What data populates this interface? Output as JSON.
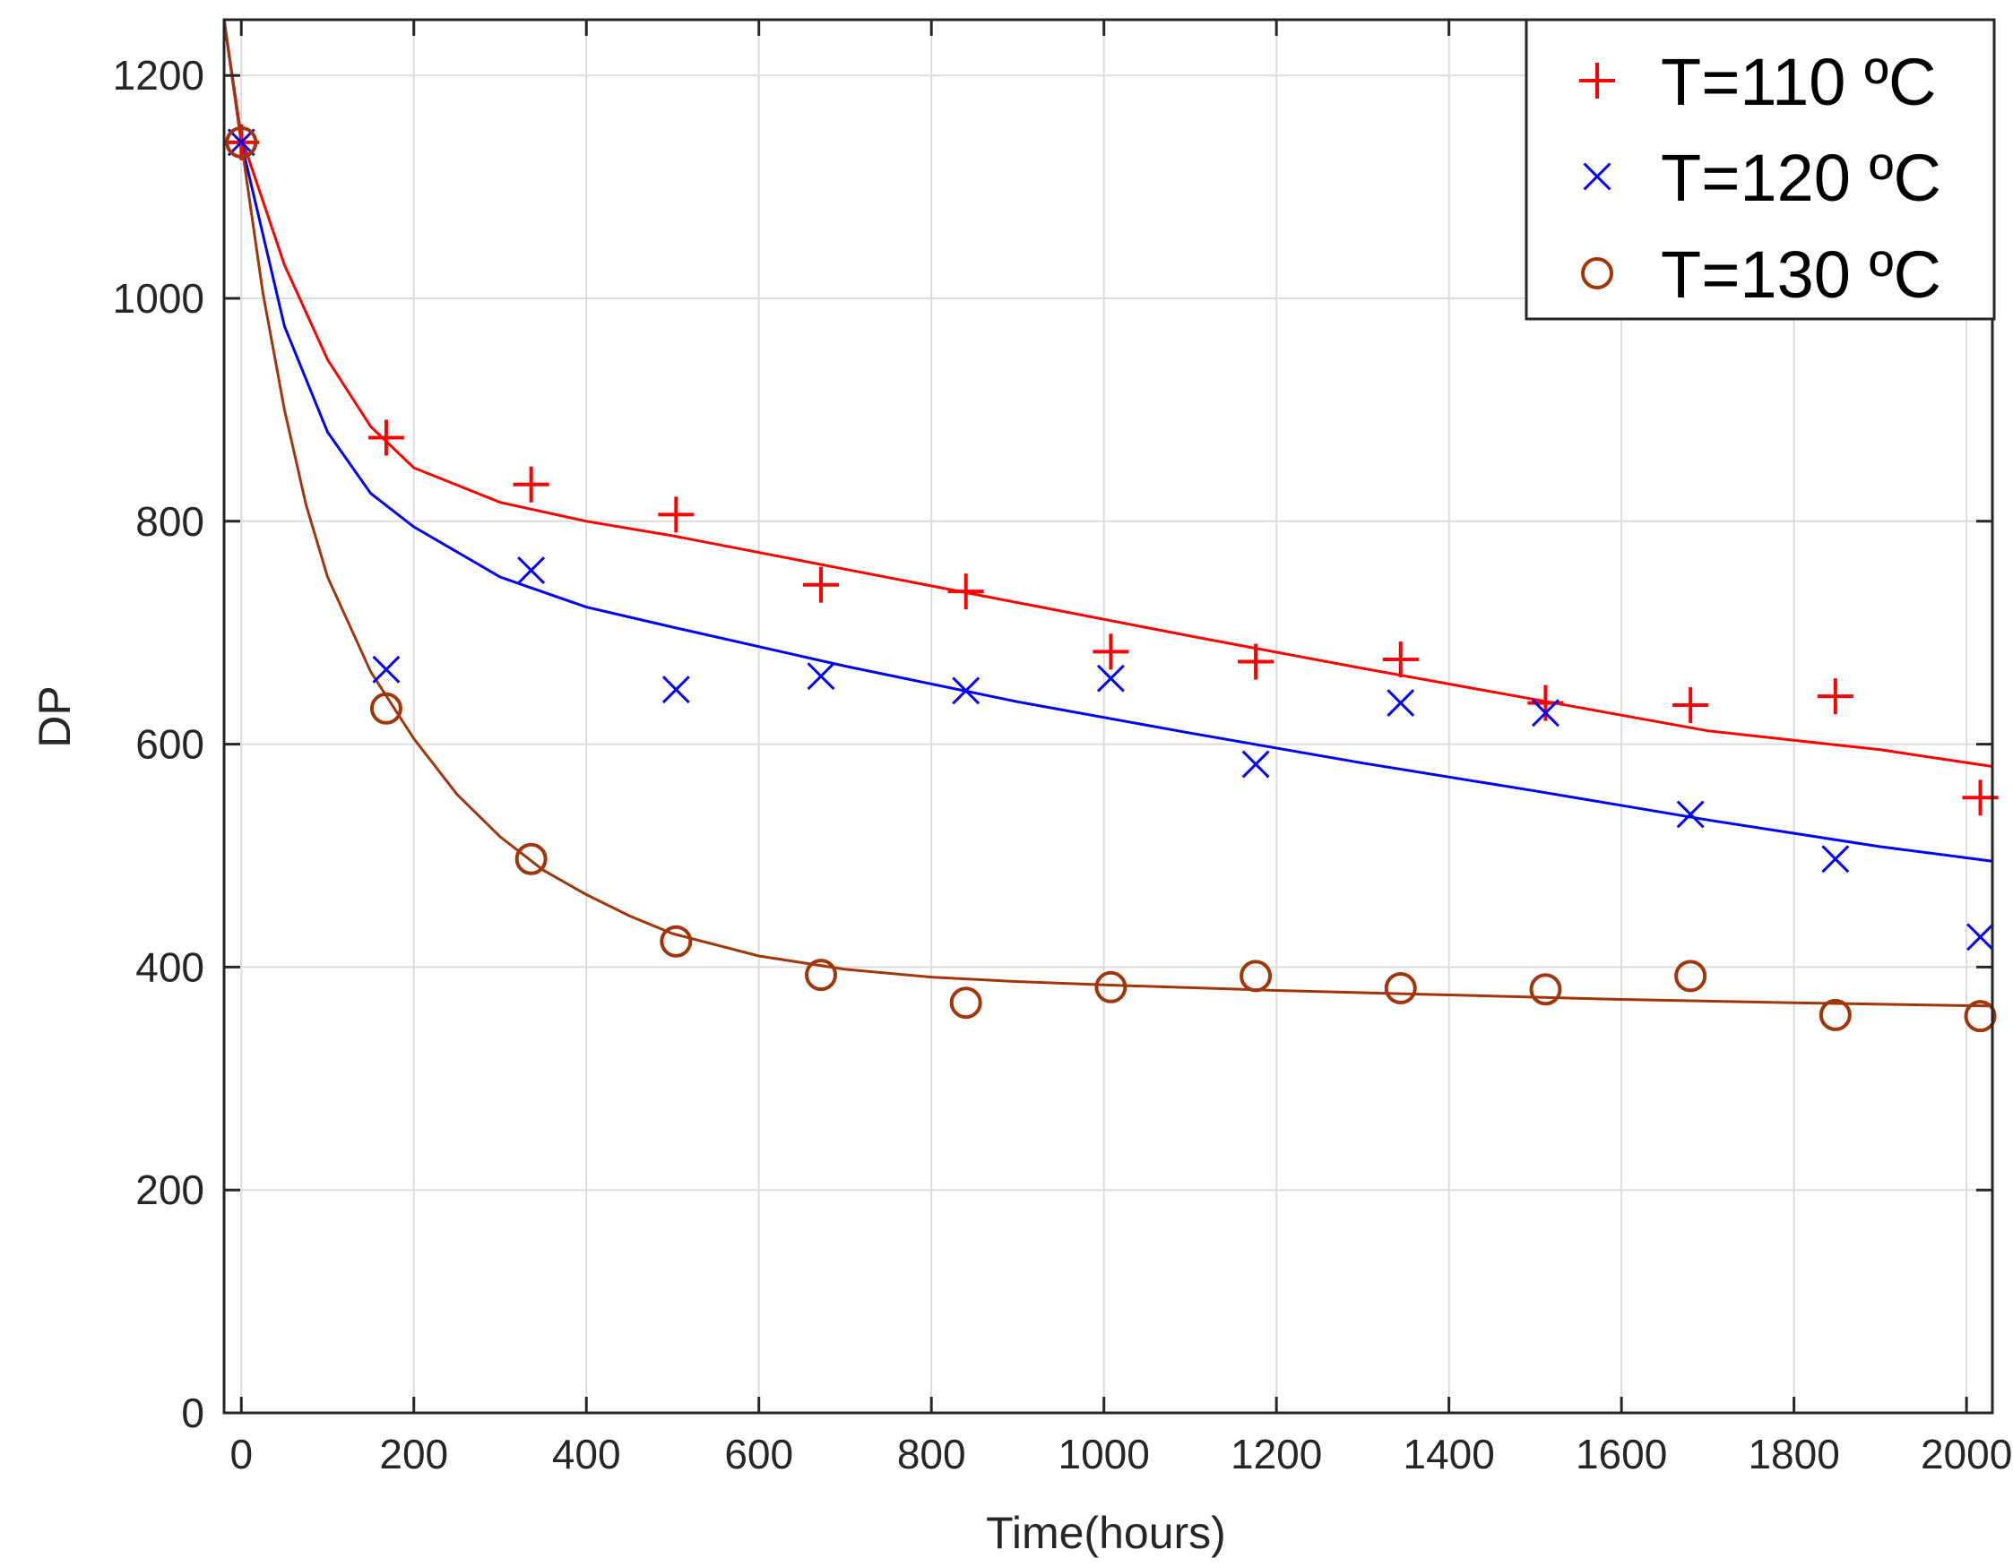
{
  "chart_data": {
    "type": "scatter",
    "title": "",
    "xlabel": "Time(hours)",
    "ylabel": "DP",
    "xlim": [
      -20,
      2030
    ],
    "ylim": [
      0,
      1250
    ],
    "xticks": [
      0,
      200,
      400,
      600,
      800,
      1000,
      1200,
      1400,
      1600,
      1800,
      2000
    ],
    "yticks": [
      0,
      200,
      400,
      600,
      800,
      1000,
      1200
    ],
    "grid": true,
    "legend_position": "top-right",
    "series": [
      {
        "name": "T=110 ºC",
        "color": "#ff0000",
        "marker": "plus",
        "x": [
          0,
          168,
          336,
          504,
          672,
          840,
          1008,
          1176,
          1344,
          1512,
          1680,
          1848,
          2016
        ],
        "y": [
          1140,
          875,
          833,
          806,
          743,
          737,
          683,
          674,
          676,
          637,
          635,
          643,
          552
        ],
        "fit": {
          "model": "double-exponential",
          "x": [
            -20,
            0,
            50,
            100,
            150,
            200,
            300,
            400,
            500,
            700,
            900,
            1100,
            1300,
            1500,
            1700,
            1900,
            2030
          ],
          "y": [
            1250,
            1145,
            1030,
            945,
            885,
            848,
            817,
            800,
            787,
            757,
            727,
            697,
            668,
            640,
            612,
            595,
            580
          ]
        }
      },
      {
        "name": "T=120 ºC",
        "color": "#0000ff",
        "marker": "x",
        "x": [
          0,
          168,
          336,
          504,
          672,
          840,
          1008,
          1176,
          1344,
          1512,
          1680,
          1848,
          2016
        ],
        "y": [
          1140,
          667,
          756,
          649,
          661,
          648,
          659,
          582,
          637,
          628,
          537,
          497,
          427
        ],
        "fit": {
          "model": "double-exponential",
          "x": [
            -20,
            0,
            50,
            100,
            150,
            200,
            300,
            400,
            500,
            700,
            900,
            1100,
            1300,
            1500,
            1700,
            1900,
            2030
          ],
          "y": [
            1250,
            1140,
            975,
            880,
            825,
            795,
            750,
            723,
            705,
            670,
            638,
            610,
            583,
            558,
            532,
            508,
            495
          ]
        }
      },
      {
        "name": "T=130 ºC",
        "color": "#a0360a",
        "marker": "circle",
        "x": [
          0,
          168,
          336,
          504,
          672,
          840,
          1008,
          1176,
          1344,
          1512,
          1680,
          1848,
          2016
        ],
        "y": [
          1140,
          632,
          497,
          423,
          393,
          368,
          382,
          392,
          381,
          380,
          392,
          357,
          356
        ],
        "fit": {
          "model": "double-exponential",
          "x": [
            -20,
            0,
            25,
            50,
            75,
            100,
            150,
            200,
            250,
            300,
            350,
            400,
            450,
            500,
            600,
            700,
            800,
            900,
            1000,
            1200,
            1400,
            1600,
            1800,
            2030
          ],
          "y": [
            1250,
            1140,
            1005,
            900,
            815,
            750,
            665,
            605,
            555,
            517,
            487,
            465,
            446,
            430,
            410,
            398,
            391,
            387,
            384,
            379,
            375,
            371,
            368,
            365
          ]
        }
      }
    ]
  }
}
